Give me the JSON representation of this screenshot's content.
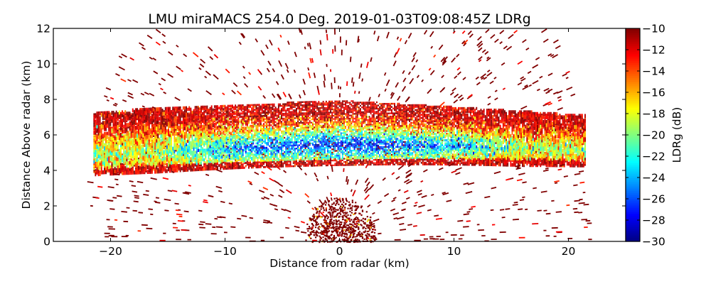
{
  "chart_data": {
    "type": "heatmap",
    "title": "LMU miraMACS 254.0 Deg. 2019-01-03T09:08:45Z  LDRg",
    "xlabel": "Distance from radar (km)",
    "ylabel": "Distance Above radar  (km)",
    "xlim": [
      -25,
      25
    ],
    "ylim": [
      0,
      12
    ],
    "xticks": [
      -20,
      -10,
      0,
      10,
      20
    ],
    "xtick_labels": [
      "−20",
      "−10",
      "0",
      "10",
      "20"
    ],
    "yticks": [
      0,
      2,
      4,
      6,
      8,
      10,
      12
    ],
    "ytick_labels": [
      "0",
      "2",
      "4",
      "6",
      "8",
      "10",
      "12"
    ],
    "colorbar": {
      "label": "LDRg (dB)",
      "range": [
        -30,
        -10
      ],
      "colormap": "jet",
      "ticks": [
        -10,
        -12,
        -14,
        -16,
        -18,
        -20,
        -22,
        -24,
        -26,
        -28,
        -30
      ],
      "tick_labels": [
        "−10",
        "−12",
        "−14",
        "−16",
        "−18",
        "−20",
        "−22",
        "−24",
        "−26",
        "−28",
        "−30"
      ]
    },
    "features": {
      "cloud_band": {
        "x_range_km": [
          -21.5,
          21.5
        ],
        "base_km_left": 4.0,
        "top_km_left": 7.0,
        "base_km_center": 4.2,
        "top_km_center": 7.5,
        "base_km_right": 4.5,
        "top_km_right": 6.8,
        "core_ldr_db": -28,
        "edge_ldr_db": -12
      },
      "near_radar_clutter": {
        "x_range_km": [
          -3,
          3.5
        ],
        "top_km": 2.5,
        "ldr_db": -10
      },
      "noise_ldr_db": -10
    }
  }
}
